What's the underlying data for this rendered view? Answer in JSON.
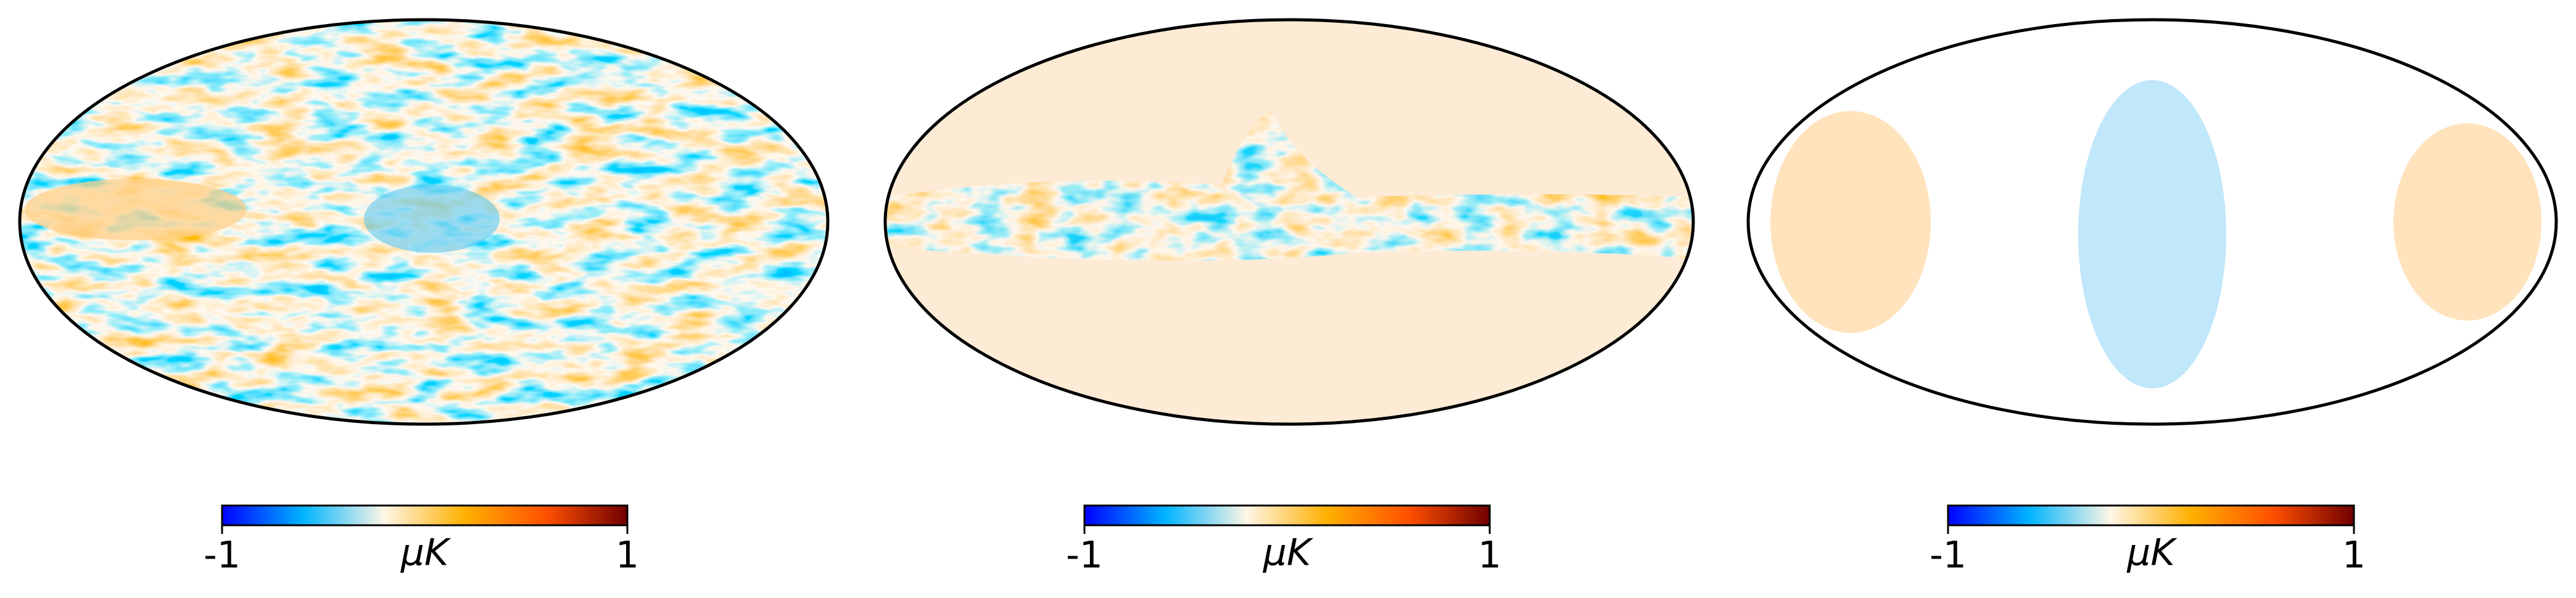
{
  "chart_data": [
    {
      "type": "skymap",
      "colorbar": {
        "label": "μK",
        "lim": [
          -1,
          1
        ],
        "ticks": [
          -1,
          1
        ],
        "colors": [
          "#0000ff",
          "#00b4ff",
          "#fff6e6",
          "#ffb000",
          "#ff5000",
          "#700000"
        ]
      }
    },
    {
      "type": "skymap",
      "colorbar": {
        "label": "μK",
        "lim": [
          -1,
          1
        ],
        "ticks": [
          -1,
          1
        ],
        "colors": [
          "#0000ff",
          "#00b4ff",
          "#fff6e6",
          "#ffb000",
          "#ff5000",
          "#700000"
        ]
      }
    },
    {
      "type": "skymap",
      "colorbar": {
        "label": "μK",
        "lim": [
          -1,
          1
        ],
        "ticks": [
          -1,
          1
        ],
        "colors": [
          "#0000ff",
          "#00b4ff",
          "#fff6e6",
          "#ffb000",
          "#ff5000",
          "#700000"
        ]
      }
    }
  ]
}
